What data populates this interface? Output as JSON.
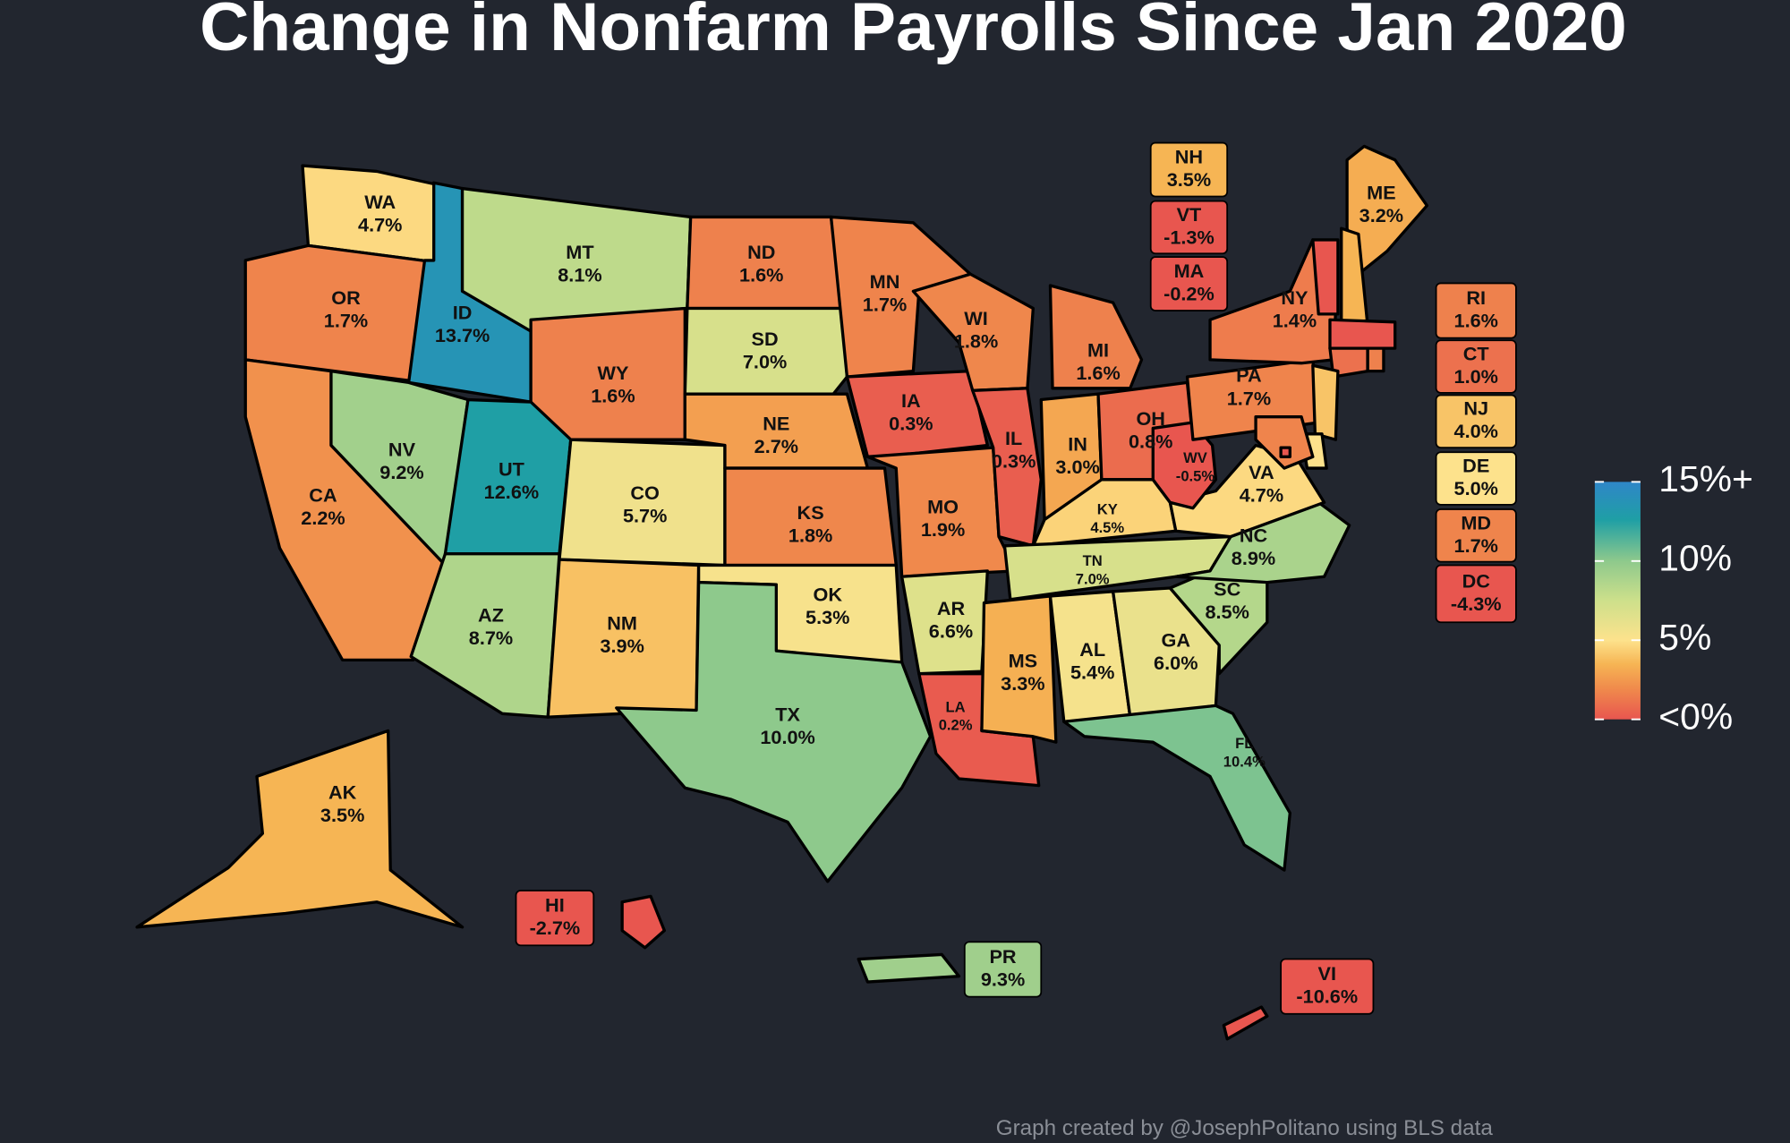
{
  "title": "Change in Nonfarm Payrolls Since Jan 2020",
  "credit": "Graph created by @JosephPolitano using BLS data",
  "legend": {
    "lim": [
      0,
      15
    ],
    "ticks": [
      {
        "value": 15,
        "label": "15%+"
      },
      {
        "value": 10,
        "label": "10%"
      },
      {
        "value": 5,
        "label": "5%"
      },
      {
        "value": 0,
        "label": "<0%"
      }
    ],
    "color_scale": [
      {
        "value": 0,
        "color": "#e8564f"
      },
      {
        "value": 2,
        "color": "#f08c4c"
      },
      {
        "value": 3.5,
        "color": "#f6b554"
      },
      {
        "value": 5,
        "color": "#fde28c"
      },
      {
        "value": 7.5,
        "color": "#cde08b"
      },
      {
        "value": 10,
        "color": "#8ec98c"
      },
      {
        "value": 12.6,
        "color": "#1f9fa5"
      },
      {
        "value": 15,
        "color": "#2f86c8"
      }
    ]
  },
  "states": [
    {
      "abbr": "WA",
      "value": 4.7,
      "label": "4.7%"
    },
    {
      "abbr": "OR",
      "value": 1.7,
      "label": "1.7%"
    },
    {
      "abbr": "ID",
      "value": 13.7,
      "label": "13.7%"
    },
    {
      "abbr": "MT",
      "value": 8.1,
      "label": "8.1%"
    },
    {
      "abbr": "WY",
      "value": 1.6,
      "label": "1.6%"
    },
    {
      "abbr": "NV",
      "value": 9.2,
      "label": "9.2%"
    },
    {
      "abbr": "CA",
      "value": 2.2,
      "label": "2.2%"
    },
    {
      "abbr": "UT",
      "value": 12.6,
      "label": "12.6%"
    },
    {
      "abbr": "AZ",
      "value": 8.7,
      "label": "8.7%"
    },
    {
      "abbr": "CO",
      "value": 5.7,
      "label": "5.7%"
    },
    {
      "abbr": "NM",
      "value": 3.9,
      "label": "3.9%"
    },
    {
      "abbr": "ND",
      "value": 1.6,
      "label": "1.6%"
    },
    {
      "abbr": "SD",
      "value": 7,
      "label": "7.0%"
    },
    {
      "abbr": "NE",
      "value": 2.7,
      "label": "2.7%"
    },
    {
      "abbr": "KS",
      "value": 1.8,
      "label": "1.8%"
    },
    {
      "abbr": "OK",
      "value": 5.3,
      "label": "5.3%"
    },
    {
      "abbr": "TX",
      "value": 10,
      "label": "10.0%"
    },
    {
      "abbr": "MN",
      "value": 1.7,
      "label": "1.7%"
    },
    {
      "abbr": "IA",
      "value": 0.3,
      "label": "0.3%"
    },
    {
      "abbr": "MO",
      "value": 1.9,
      "label": "1.9%"
    },
    {
      "abbr": "AR",
      "value": 6.6,
      "label": "6.6%"
    },
    {
      "abbr": "LA",
      "value": 0.2,
      "label": "0.2%"
    },
    {
      "abbr": "WI",
      "value": 1.8,
      "label": "1.8%"
    },
    {
      "abbr": "IL",
      "value": 0.3,
      "label": "0.3%"
    },
    {
      "abbr": "MI",
      "value": 1.6,
      "label": "1.6%"
    },
    {
      "abbr": "IN",
      "value": 3,
      "label": "3.0%"
    },
    {
      "abbr": "OH",
      "value": 0.8,
      "label": "0.8%"
    },
    {
      "abbr": "KY",
      "value": 4.5,
      "label": "4.5%"
    },
    {
      "abbr": "TN",
      "value": 7,
      "label": "7.0%"
    },
    {
      "abbr": "MS",
      "value": 3.3,
      "label": "3.3%"
    },
    {
      "abbr": "AL",
      "value": 5.4,
      "label": "5.4%"
    },
    {
      "abbr": "GA",
      "value": 6,
      "label": "6.0%"
    },
    {
      "abbr": "FL",
      "value": 10.4,
      "label": "10.4%"
    },
    {
      "abbr": "SC",
      "value": 8.5,
      "label": "8.5%"
    },
    {
      "abbr": "NC",
      "value": 8.9,
      "label": "8.9%"
    },
    {
      "abbr": "VA",
      "value": 4.7,
      "label": "4.7%"
    },
    {
      "abbr": "WV",
      "value": -0.5,
      "label": "-0.5%"
    },
    {
      "abbr": "PA",
      "value": 1.7,
      "label": "1.7%"
    },
    {
      "abbr": "NY",
      "value": 1.4,
      "label": "1.4%"
    },
    {
      "abbr": "ME",
      "value": 3.2,
      "label": "3.2%"
    },
    {
      "abbr": "AK",
      "value": 3.5,
      "label": "3.5%"
    },
    {
      "abbr": "NH",
      "value": 3.5,
      "label": "3.5%"
    },
    {
      "abbr": "VT",
      "value": -1.3,
      "label": "-1.3%"
    },
    {
      "abbr": "MA",
      "value": -0.2,
      "label": "-0.2%"
    },
    {
      "abbr": "RI",
      "value": 1.6,
      "label": "1.6%"
    },
    {
      "abbr": "CT",
      "value": 1,
      "label": "1.0%"
    },
    {
      "abbr": "NJ",
      "value": 4,
      "label": "4.0%"
    },
    {
      "abbr": "DE",
      "value": 5,
      "label": "5.0%"
    },
    {
      "abbr": "MD",
      "value": 1.7,
      "label": "1.7%"
    },
    {
      "abbr": "DC",
      "value": -4.3,
      "label": "-4.3%"
    },
    {
      "abbr": "HI",
      "value": -2.7,
      "label": "-2.7%"
    },
    {
      "abbr": "PR",
      "value": 9.3,
      "label": "9.3%"
    },
    {
      "abbr": "VI",
      "value": -10.6,
      "label": "-10.6%"
    }
  ]
}
